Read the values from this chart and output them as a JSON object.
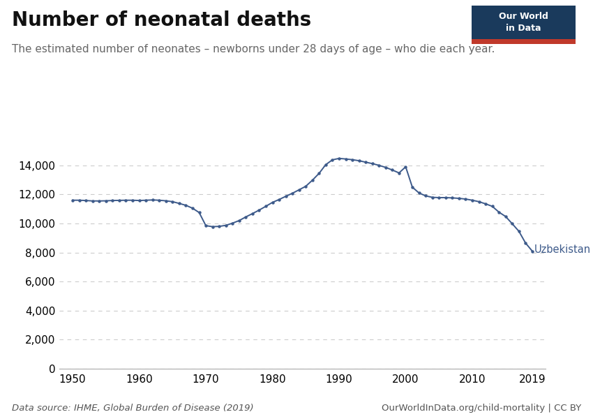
{
  "title": "Number of neonatal deaths",
  "subtitle": "The estimated number of neonates – newborns under 28 days of age – who die each year.",
  "source_left": "Data source: IHME, Global Burden of Disease (2019)",
  "source_right": "OurWorldInData.org/child-mortality | CC BY",
  "country_label": "Uzbekistan",
  "line_color": "#3d5a8a",
  "marker_color": "#3d5a8a",
  "years": [
    1950,
    1951,
    1952,
    1953,
    1954,
    1955,
    1956,
    1957,
    1958,
    1959,
    1960,
    1961,
    1962,
    1963,
    1964,
    1965,
    1966,
    1967,
    1968,
    1969,
    1970,
    1971,
    1972,
    1973,
    1974,
    1975,
    1976,
    1977,
    1978,
    1979,
    1980,
    1981,
    1982,
    1983,
    1984,
    1985,
    1986,
    1987,
    1988,
    1989,
    1990,
    1991,
    1992,
    1993,
    1994,
    1995,
    1996,
    1997,
    1998,
    1999,
    2000,
    2001,
    2002,
    2003,
    2004,
    2005,
    2006,
    2007,
    2008,
    2009,
    2010,
    2011,
    2012,
    2013,
    2014,
    2015,
    2016,
    2017,
    2018,
    2019
  ],
  "values": [
    11600,
    11600,
    11580,
    11550,
    11550,
    11560,
    11580,
    11590,
    11600,
    11600,
    11580,
    11600,
    11620,
    11600,
    11560,
    11500,
    11380,
    11250,
    11050,
    10750,
    9850,
    9780,
    9800,
    9870,
    10020,
    10200,
    10450,
    10680,
    10920,
    11180,
    11450,
    11650,
    11870,
    12080,
    12320,
    12560,
    12980,
    13450,
    14050,
    14380,
    14480,
    14440,
    14390,
    14320,
    14220,
    14120,
    14000,
    13860,
    13680,
    13480,
    13900,
    12500,
    12100,
    11900,
    11800,
    11780,
    11780,
    11760,
    11730,
    11680,
    11600,
    11500,
    11350,
    11180,
    10780,
    10480,
    9980,
    9460,
    8650,
    8100
  ],
  "ylim": [
    0,
    15000
  ],
  "yticks": [
    0,
    2000,
    4000,
    6000,
    8000,
    10000,
    12000,
    14000
  ],
  "xticks": [
    1950,
    1960,
    1970,
    1980,
    1990,
    2000,
    2010,
    2019
  ],
  "grid_color": "#cccccc",
  "background_color": "#ffffff",
  "owid_box_bg": "#1a3a5c",
  "owid_box_red": "#c0392b",
  "title_fontsize": 20,
  "subtitle_fontsize": 11,
  "tick_fontsize": 11,
  "source_fontsize": 9.5
}
